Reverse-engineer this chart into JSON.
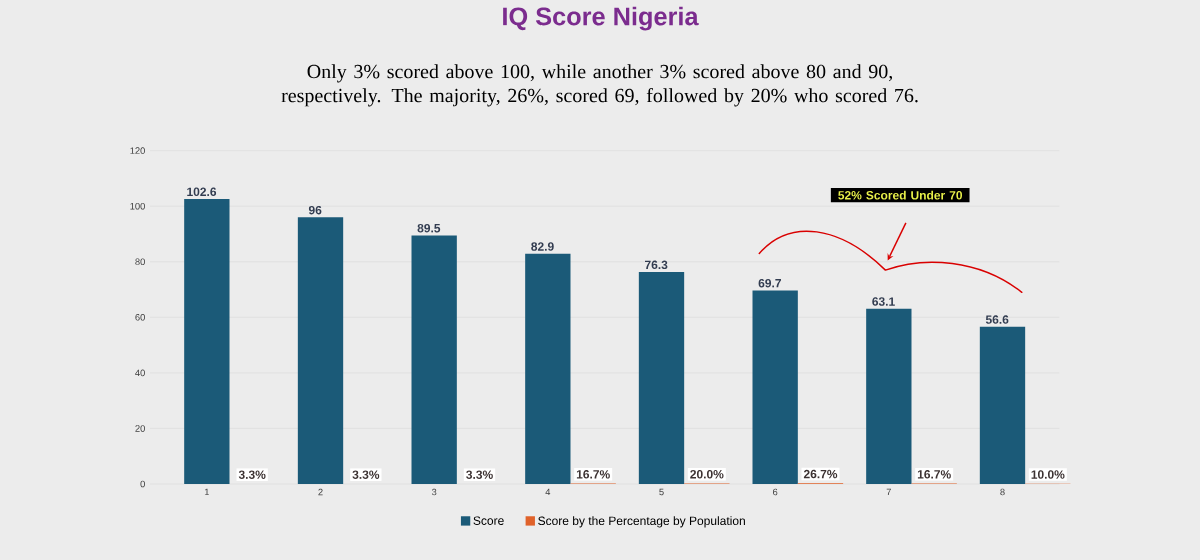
{
  "chart_data": {
    "type": "bar",
    "title": "IQ Score Nigeria",
    "subtitle": "Only 3% scored above 100, while another 3% scored above 80 and 90, respectively. The majority, 26%, scored 69, followed by 20% who scored 76.",
    "annotations": [
      "52% Scored Under 70"
    ],
    "categories": [
      "1",
      "2",
      "3",
      "4",
      "5",
      "6",
      "7",
      "8"
    ],
    "series": [
      {
        "name": "Score",
        "color": "#1b5a78",
        "values": [
          102.6,
          96,
          89.5,
          82.9,
          76.3,
          69.7,
          63.1,
          56.6
        ],
        "value_labels": [
          "102.6",
          "96",
          "89.5",
          "82.9",
          "76.3",
          "69.7",
          "63.1",
          "56.6"
        ]
      },
      {
        "name": "Score by the Percentage by Population",
        "color": "#e0622a",
        "values": [
          0.033,
          0.033,
          0.033,
          0.167,
          0.2,
          0.267,
          0.167,
          0.1
        ],
        "value_labels": [
          "3.3%",
          "3.3%",
          "3.3%",
          "16.7%",
          "20.0%",
          "26.7%",
          "16.7%",
          "10.0%"
        ]
      }
    ],
    "ylim": [
      0,
      120
    ],
    "yticks": [
      0,
      20,
      40,
      60,
      80,
      100,
      120
    ],
    "grid": "y",
    "legend": "bottom"
  }
}
